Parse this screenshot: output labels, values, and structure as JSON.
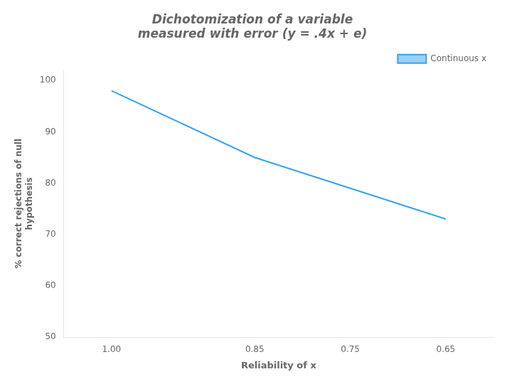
{
  "chart_data": {
    "type": "line",
    "title": "Dichotomization of a variable\nmeasured with error (y = .4x + e)",
    "x_label": "Reliability of x",
    "y_label": "% correct rejections of null\nhypothesis",
    "x": [
      1.0,
      0.85,
      0.75,
      0.65
    ],
    "series": [
      {
        "name": "Continuous x",
        "values": [
          98,
          85,
          79,
          73
        ]
      }
    ],
    "xlim": [
      1.05,
      0.6
    ],
    "xticks": [
      {
        "value": 1.0,
        "label": "1.00"
      },
      0.85,
      0.75,
      0.65
    ],
    "ylim": [
      50,
      102
    ],
    "yticks": [
      50,
      60,
      70,
      80,
      90,
      100
    ],
    "grid": false,
    "legend": "upper right"
  }
}
